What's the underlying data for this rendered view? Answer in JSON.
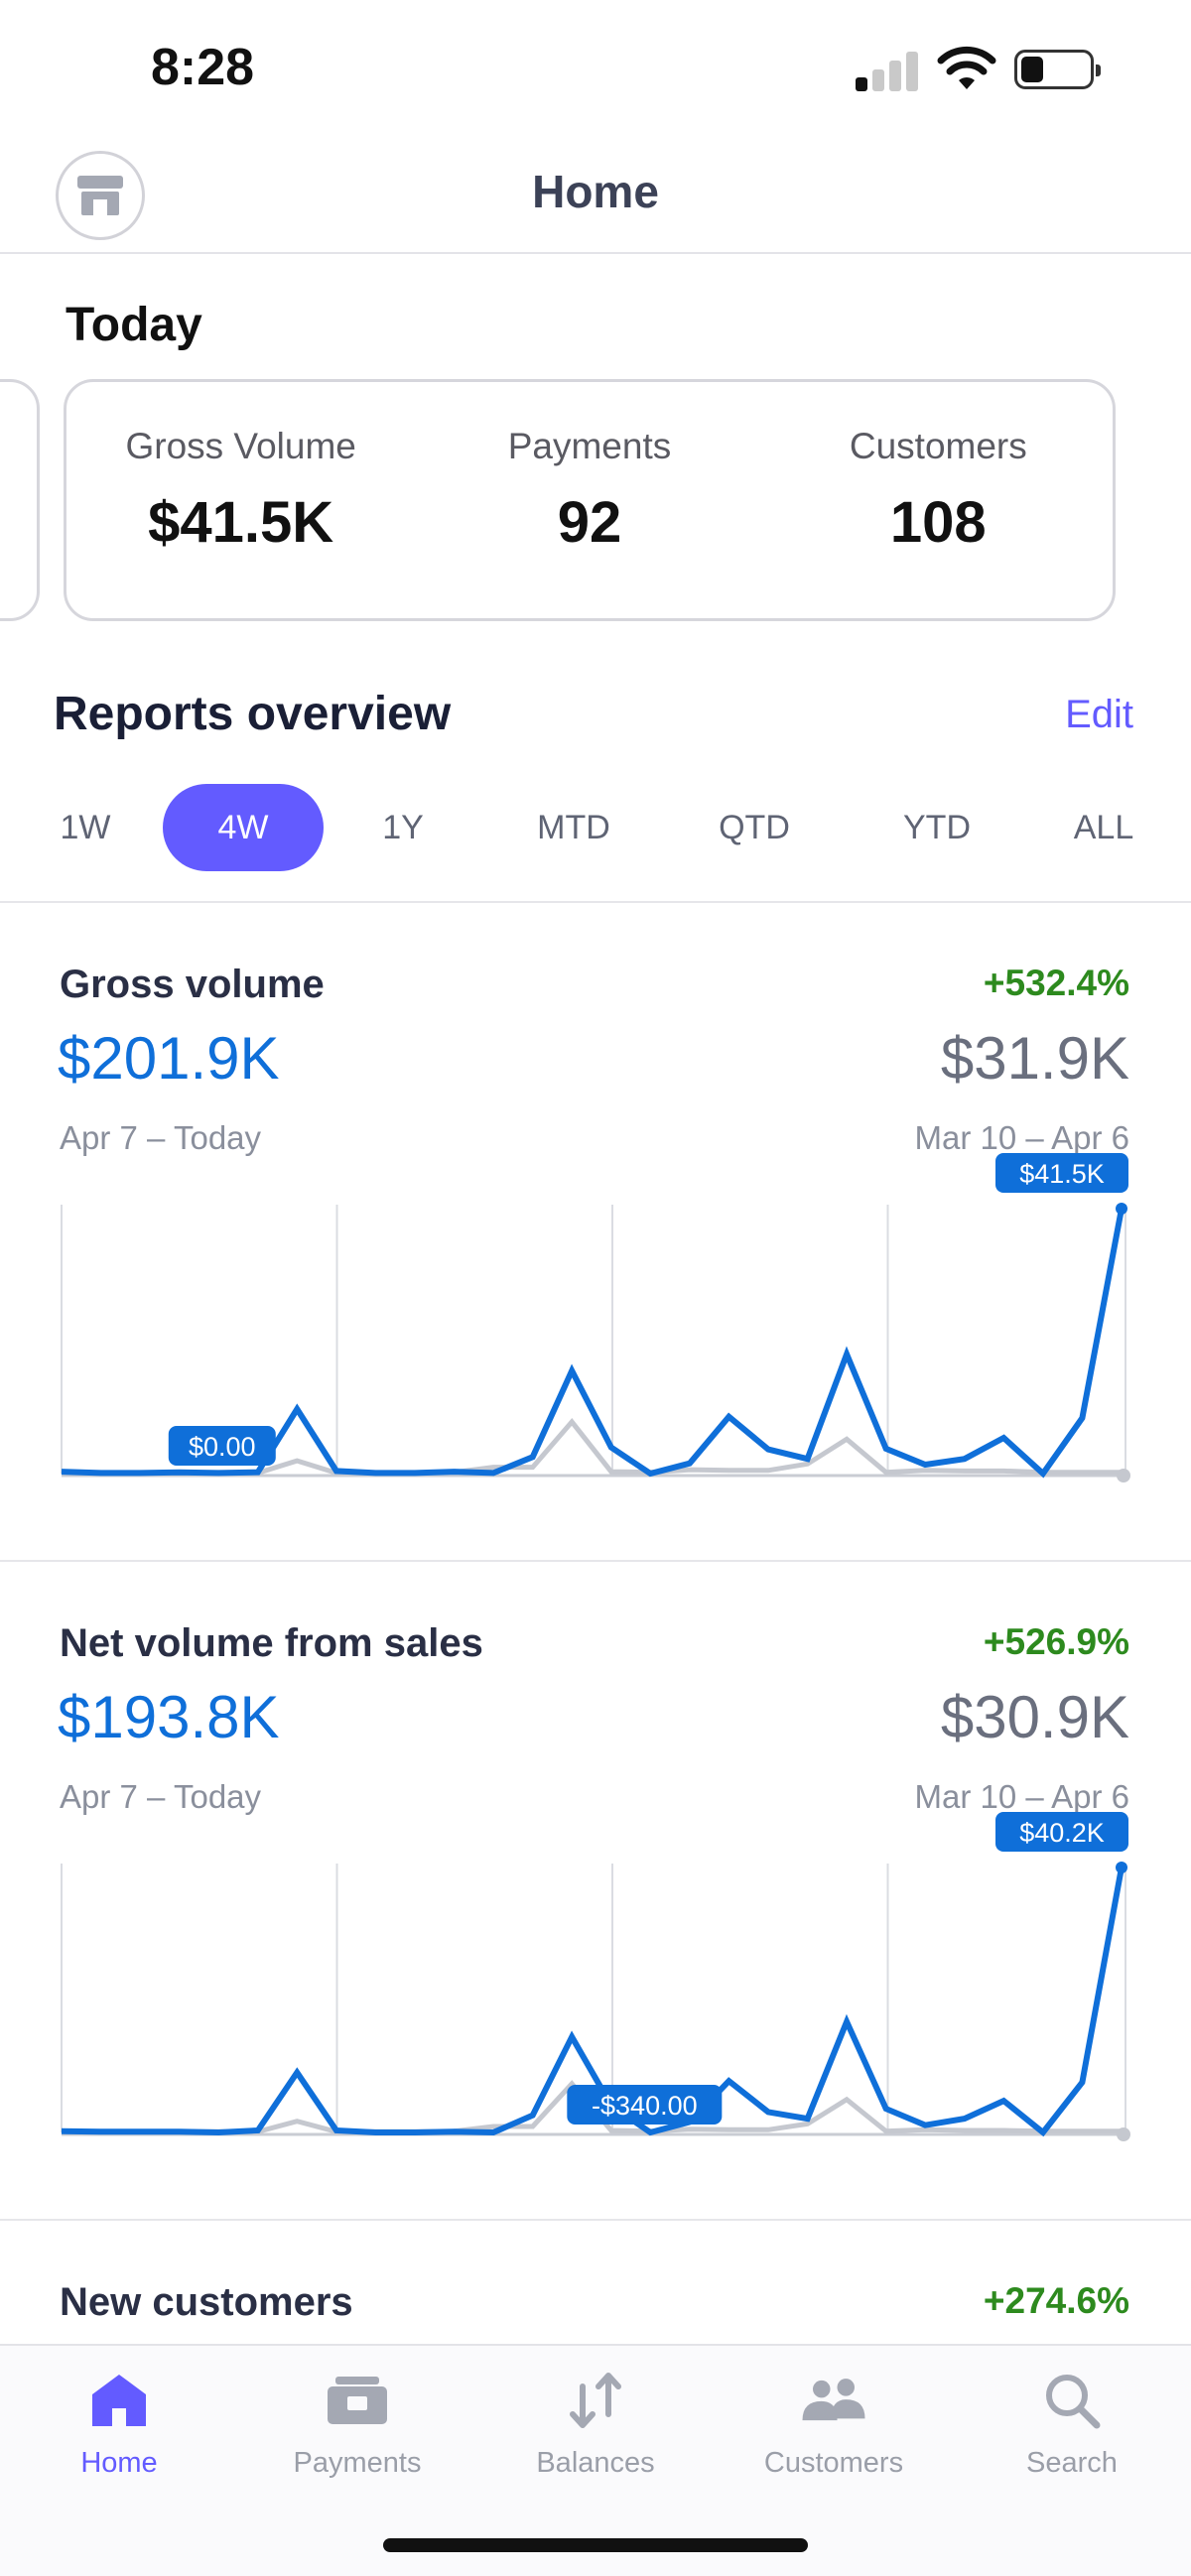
{
  "status_bar": {
    "time": "8:28"
  },
  "header": {
    "title": "Home",
    "store_icon": "store-icon"
  },
  "today": {
    "title": "Today",
    "metrics": [
      {
        "label": "Gross Volume",
        "value": "$41.5K"
      },
      {
        "label": "Payments",
        "value": "92"
      },
      {
        "label": "Customers",
        "value": "108"
      }
    ]
  },
  "reports": {
    "title": "Reports overview",
    "edit_label": "Edit",
    "periods": [
      "1W",
      "4W",
      "1Y",
      "MTD",
      "QTD",
      "YTD",
      "ALL"
    ],
    "active_period": "4W",
    "accent_color": "#635bff"
  },
  "gross_volume": {
    "title": "Gross volume",
    "change": "+532.4%",
    "value": "$201.9K",
    "range": "Apr 7 – Today",
    "previous_value": "$31.9K",
    "previous_range": "Mar 10 – Apr 6",
    "tooltip_end": "$41.5K",
    "tooltip_low": "$0.00"
  },
  "net_volume": {
    "title": "Net volume from sales",
    "change": "+526.9%",
    "value": "$193.8K",
    "range": "Apr 7 – Today",
    "previous_value": "$30.9K",
    "previous_range": "Mar 10 – Apr 6",
    "tooltip_end": "$40.2K",
    "tooltip_low": "-$340.00"
  },
  "new_customers": {
    "title": "New customers",
    "change": "+274.6%"
  },
  "chart_data": [
    {
      "type": "line",
      "title": "Gross volume",
      "unit": "K USD",
      "series": [
        {
          "values": [
            0.3,
            0.1,
            0.1,
            0.2,
            0.1,
            0.2,
            10.1,
            0.4,
            0.1,
            0.1,
            0.3,
            0.1,
            2.6,
            16.1,
            4.1,
            0,
            1.6,
            8.9,
            3.8,
            2.3,
            18.7,
            3.9,
            1.4,
            2.3,
            5.6,
            0,
            8.7,
            41.5
          ]
        },
        {
          "values": [
            0.1,
            0.1,
            0.1,
            0.1,
            0.1,
            0.1,
            2.0,
            0.1,
            0.1,
            0.1,
            0.2,
            1.0,
            1.0,
            8.1,
            0.3,
            0.2,
            0.6,
            0.5,
            0.5,
            1.5,
            5.4,
            0.2,
            0.5,
            0.4,
            0.4,
            0.2,
            0.2,
            0.2
          ]
        }
      ],
      "ylim": [
        0,
        41.5
      ]
    },
    {
      "type": "line",
      "title": "Net volume from sales",
      "unit": "K USD",
      "series": [
        {
          "values": [
            0.2,
            0.1,
            0.1,
            0.1,
            0,
            0.3,
            9.1,
            0.3,
            0,
            0,
            0.1,
            0,
            2.6,
            14.5,
            4.1,
            -0.34,
            1.6,
            7.8,
            3.1,
            2.1,
            16.8,
            3.6,
            1.1,
            2.1,
            4.8,
            -0.1,
            7.6,
            40.2
          ]
        },
        {
          "values": [
            0.1,
            0.1,
            0.1,
            0.1,
            0.1,
            0.1,
            1.7,
            0.1,
            0.1,
            0.1,
            0.2,
            0.9,
            0.9,
            7.4,
            0.3,
            0.2,
            0.5,
            0.4,
            0.4,
            1.3,
            5.0,
            0.2,
            0.4,
            0.3,
            0.3,
            0.2,
            0.2,
            0.2
          ]
        }
      ],
      "ylim": [
        -0.34,
        40.2
      ]
    }
  ],
  "tabbar": {
    "items": [
      {
        "label": "Home",
        "icon": "home-icon",
        "active": true
      },
      {
        "label": "Payments",
        "icon": "payments-icon",
        "active": false
      },
      {
        "label": "Balances",
        "icon": "balances-icon",
        "active": false
      },
      {
        "label": "Customers",
        "icon": "customers-icon",
        "active": false
      },
      {
        "label": "Search",
        "icon": "search-icon",
        "active": false
      }
    ]
  }
}
